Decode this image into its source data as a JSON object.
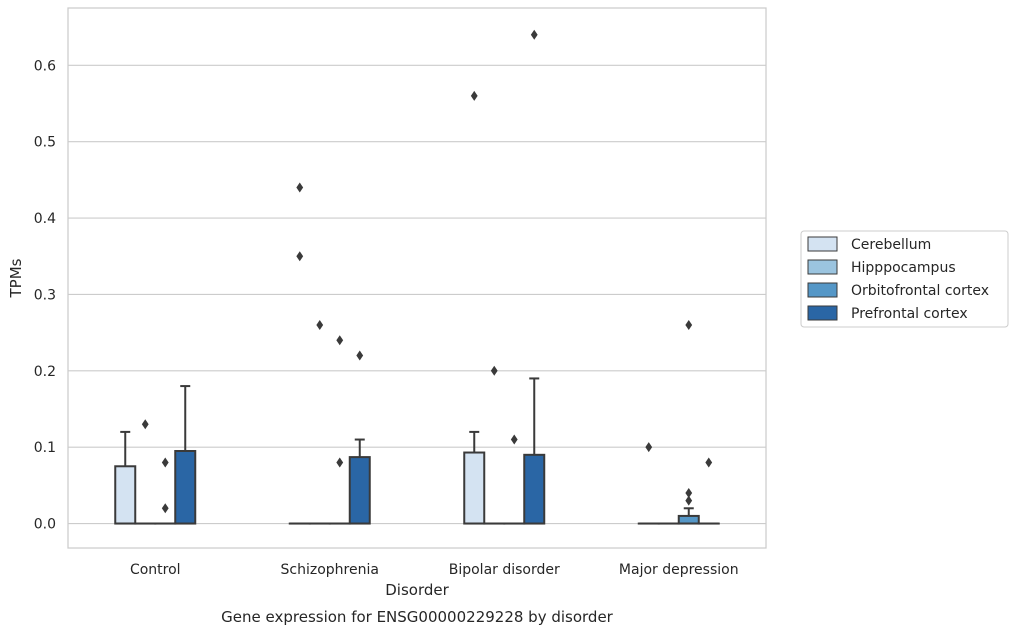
{
  "chart_data": {
    "type": "box",
    "caption": "Gene expression for ENSG00000229228 by disorder",
    "xlabel": "Disorder",
    "ylabel": "TPMs",
    "ylim": [
      -0.032,
      0.675
    ],
    "yticks": [
      "0.0",
      "0.1",
      "0.2",
      "0.3",
      "0.4",
      "0.5",
      "0.6"
    ],
    "ytick_values": [
      0,
      0.1,
      0.2,
      0.3,
      0.4,
      0.5,
      0.6
    ],
    "grid": true,
    "legend_position": "right",
    "categories": [
      "Control",
      "Schizophrenia",
      "Bipolar disorder",
      "Major depression"
    ],
    "series": [
      {
        "name": "Cerebellum",
        "color": "#d4e3f2",
        "boxes": [
          {
            "q1": 0,
            "median": 0,
            "q3": 0.075,
            "whisker_low": 0,
            "whisker_high": 0.12,
            "outliers": []
          },
          {
            "q1": 0,
            "median": 0,
            "q3": 0,
            "whisker_low": 0,
            "whisker_high": 0,
            "outliers": [
              0.44,
              0.35
            ]
          },
          {
            "q1": 0,
            "median": 0,
            "q3": 0.093,
            "whisker_low": 0,
            "whisker_high": 0.12,
            "outliers": [
              0.56
            ]
          },
          {
            "q1": 0,
            "median": 0,
            "q3": 0,
            "whisker_low": 0,
            "whisker_high": 0,
            "outliers": [
              0.1
            ]
          }
        ]
      },
      {
        "name": "Hipppocampus",
        "color": "#9bc4df",
        "boxes": [
          {
            "q1": 0,
            "median": 0,
            "q3": 0,
            "whisker_low": 0,
            "whisker_high": 0,
            "outliers": [
              0.13
            ]
          },
          {
            "q1": 0,
            "median": 0,
            "q3": 0,
            "whisker_low": 0,
            "whisker_high": 0,
            "outliers": [
              0.26
            ]
          },
          {
            "q1": 0,
            "median": 0,
            "q3": 0,
            "whisker_low": 0,
            "whisker_high": 0,
            "outliers": [
              0.2
            ]
          },
          {
            "q1": 0,
            "median": 0,
            "q3": 0,
            "whisker_low": 0,
            "whisker_high": 0,
            "outliers": []
          }
        ]
      },
      {
        "name": "Orbitofrontal cortex",
        "color": "#5597c7",
        "boxes": [
          {
            "q1": 0,
            "median": 0,
            "q3": 0,
            "whisker_low": 0,
            "whisker_high": 0,
            "outliers": [
              0.08,
              0.02
            ]
          },
          {
            "q1": 0,
            "median": 0,
            "q3": 0,
            "whisker_low": 0,
            "whisker_high": 0,
            "outliers": [
              0.24,
              0.08
            ]
          },
          {
            "q1": 0,
            "median": 0,
            "q3": 0,
            "whisker_low": 0,
            "whisker_high": 0,
            "outliers": [
              0.11
            ]
          },
          {
            "q1": 0,
            "median": 0,
            "q3": 0.01,
            "whisker_low": 0,
            "whisker_high": 0.02,
            "outliers": [
              0.26,
              0.04,
              0.03
            ]
          }
        ]
      },
      {
        "name": "Prefrontal cortex",
        "color": "#2a66a5",
        "boxes": [
          {
            "q1": 0,
            "median": 0,
            "q3": 0.095,
            "whisker_low": 0,
            "whisker_high": 0.18,
            "outliers": []
          },
          {
            "q1": 0,
            "median": 0,
            "q3": 0.087,
            "whisker_low": 0,
            "whisker_high": 0.11,
            "outliers": [
              0.22
            ]
          },
          {
            "q1": 0,
            "median": 0,
            "q3": 0.09,
            "whisker_low": 0,
            "whisker_high": 0.19,
            "outliers": [
              0.64
            ]
          },
          {
            "q1": 0,
            "median": 0,
            "q3": 0,
            "whisker_low": 0,
            "whisker_high": 0,
            "outliers": [
              0.08
            ]
          }
        ]
      }
    ]
  }
}
